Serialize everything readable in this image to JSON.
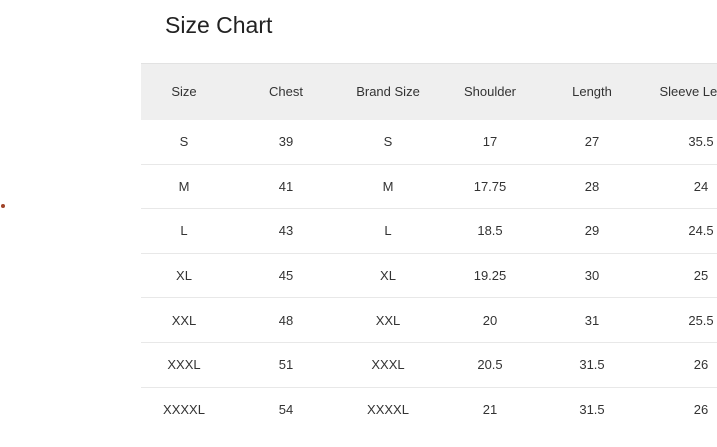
{
  "title": "Size Chart",
  "colors": {
    "header_bg": "#efefef",
    "dot": "#a0442a"
  },
  "table": {
    "headers": [
      "Size",
      "Chest",
      "Brand Size",
      "Shoulder",
      "Length",
      "Sleeve Length"
    ],
    "rows": [
      [
        "S",
        "39",
        "S",
        "17",
        "27",
        "35.5"
      ],
      [
        "M",
        "41",
        "M",
        "17.75",
        "28",
        "24"
      ],
      [
        "L",
        "43",
        "L",
        "18.5",
        "29",
        "24.5"
      ],
      [
        "XL",
        "45",
        "XL",
        "19.25",
        "30",
        "25"
      ],
      [
        "XXL",
        "48",
        "XXL",
        "20",
        "31",
        "25.5"
      ],
      [
        "XXXL",
        "51",
        "XXXL",
        "20.5",
        "31.5",
        "26"
      ],
      [
        "XXXXL",
        "54",
        "XXXXL",
        "21",
        "31.5",
        "26"
      ]
    ]
  }
}
